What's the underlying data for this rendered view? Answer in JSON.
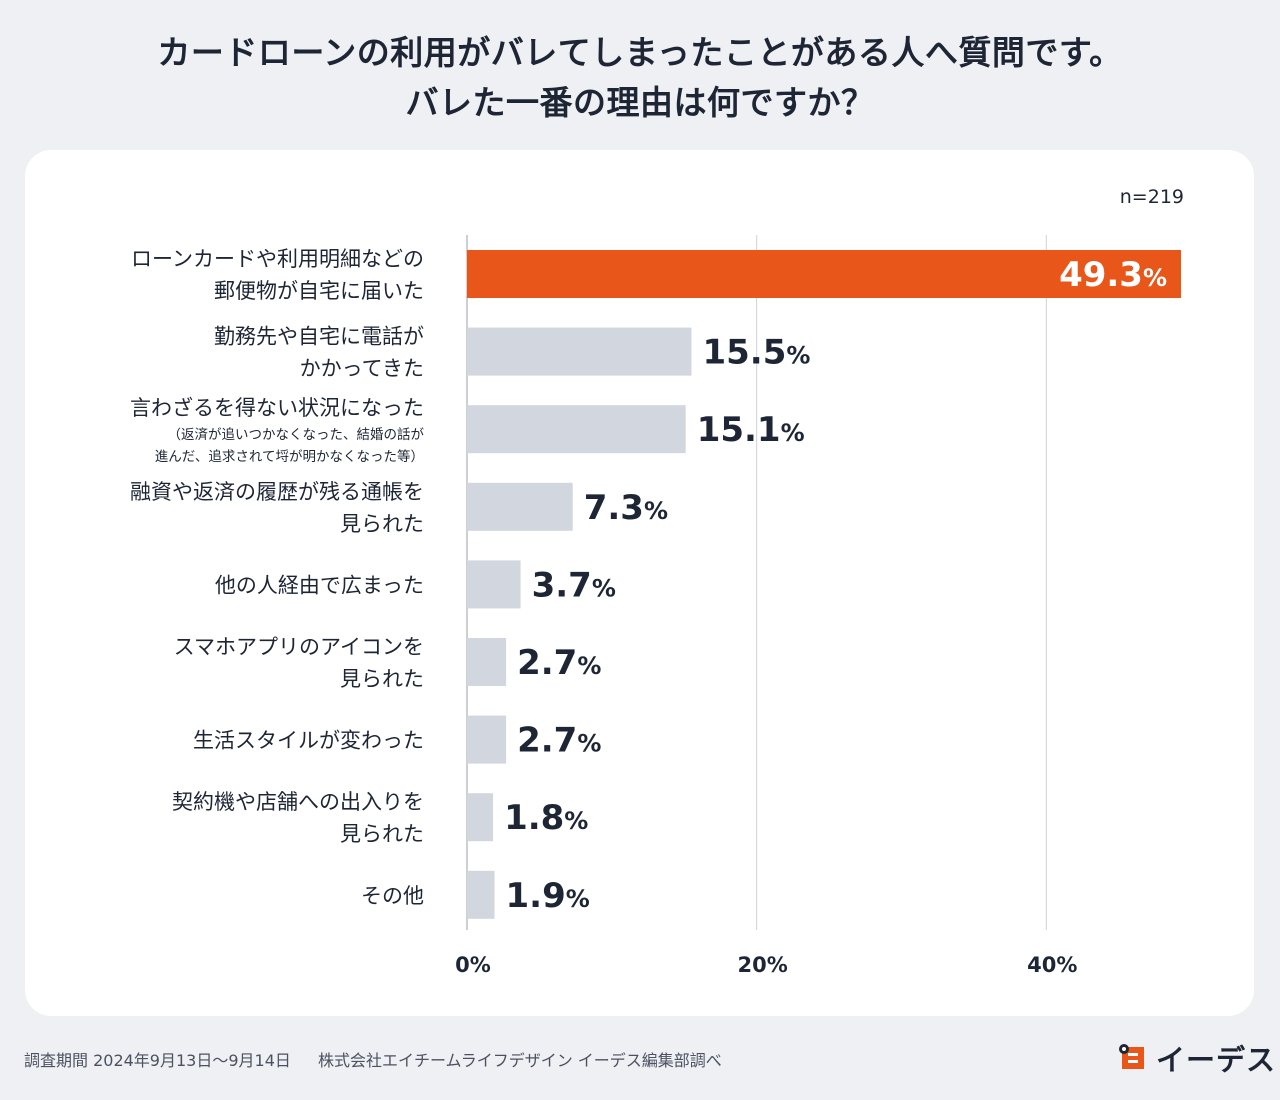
{
  "title_lines": [
    "カードローンの利用がバレてしまったことがある人へ質問です。",
    "バレた一番の理由は何ですか？"
  ],
  "sample_size": "n=219",
  "colors": {
    "highlight": "#e8561a",
    "bar": "#d2d6de",
    "value_text": "#1e2636",
    "highlight_value_text": "#ffffff",
    "grid": "#cfd3da"
  },
  "chart_data": {
    "type": "bar",
    "orientation": "horizontal",
    "title": "カードローンの利用がバレてしまったことがある人へ質問です。バレた一番の理由は何ですか？",
    "xlim": [
      0,
      49.3
    ],
    "xticks": [
      {
        "value": 0,
        "label": "0%"
      },
      {
        "value": 20,
        "label": "20%"
      },
      {
        "value": 40,
        "label": "40%"
      }
    ],
    "categories": [
      {
        "lines": [
          "ローンカードや利用明細などの",
          "郵便物が自宅に届いた"
        ],
        "note": []
      },
      {
        "lines": [
          "勤務先や自宅に電話が",
          "かかってきた"
        ],
        "note": []
      },
      {
        "lines": [
          "言わざるを得ない状況になった"
        ],
        "note": [
          "（返済が追いつかなくなった、結婚の話が",
          "進んだ、追求されて埒が明かなくなった等）"
        ]
      },
      {
        "lines": [
          "融資や返済の履歴が残る通帳を",
          "見られた"
        ],
        "note": []
      },
      {
        "lines": [
          "他の人経由で広まった"
        ],
        "note": []
      },
      {
        "lines": [
          "スマホアプリのアイコンを",
          "見られた"
        ],
        "note": []
      },
      {
        "lines": [
          "生活スタイルが変わった"
        ],
        "note": []
      },
      {
        "lines": [
          "契約機や店舗への出入りを",
          "見られた"
        ],
        "note": []
      },
      {
        "lines": [
          "その他"
        ],
        "note": []
      }
    ],
    "values": [
      49.3,
      15.5,
      15.1,
      7.3,
      3.7,
      2.7,
      2.7,
      1.8,
      1.9
    ],
    "value_labels": [
      "49.3",
      "15.5",
      "15.1",
      "7.3",
      "3.7",
      "2.7",
      "2.7",
      "1.8",
      "1.9"
    ],
    "unit": "%",
    "highlight_index": 0
  },
  "footer": {
    "survey_period": "調査期間 2024年9月13日〜9月14日",
    "source": "株式会社エイチームライフデザイン イーデス編集部調べ"
  },
  "brand": {
    "name": "イーデス",
    "icon": "edes-logo-icon"
  }
}
